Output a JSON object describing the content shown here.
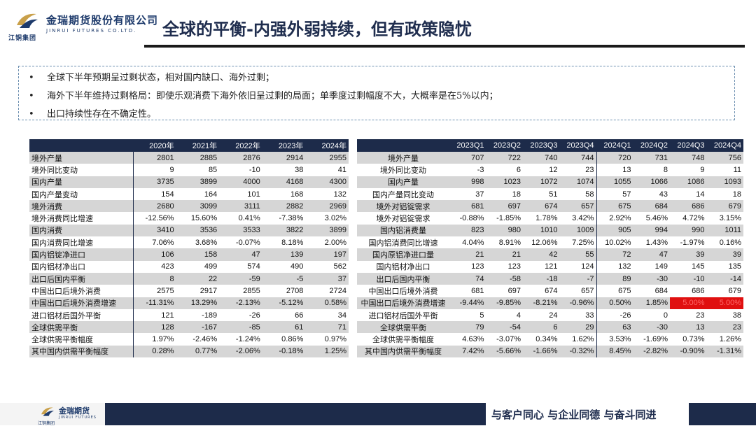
{
  "header": {
    "company_cn": "金瑞期货股份有限公司",
    "company_en": "JINRUI FUTURES CO.LTD.",
    "group": "江铜集团",
    "title": "全球的平衡-内强外弱持续，但有政策隐忧"
  },
  "bullets": [
    "全球下半年预期呈过剩状态，相对国内缺口、海外过剩；",
    "海外下半年维持过剩格局：即使乐观消费下海外依旧呈过剩的局面；单季度过剩幅度不大，大概率是在5%以内；",
    "出口持续性存在不确定性。"
  ],
  "annual_table": {
    "headers": [
      "",
      "2020年",
      "2021年",
      "2022年",
      "2023年",
      "2024年"
    ],
    "rows": [
      [
        "境外产量",
        "2801",
        "2885",
        "2876",
        "2914",
        "2955"
      ],
      [
        "境外同比变动",
        "9",
        "85",
        "-10",
        "38",
        "41"
      ],
      [
        "国内产量",
        "3735",
        "3899",
        "4000",
        "4168",
        "4300"
      ],
      [
        "国内产量变动",
        "154",
        "164",
        "101",
        "168",
        "132"
      ],
      [
        "境外消费",
        "2680",
        "3099",
        "3111",
        "2882",
        "2969"
      ],
      [
        "境外消费同比增速",
        "-12.56%",
        "15.60%",
        "0.41%",
        "-7.38%",
        "3.02%"
      ],
      [
        "国内消费",
        "3410",
        "3536",
        "3533",
        "3822",
        "3899"
      ],
      [
        "国内消费同比增速",
        "7.06%",
        "3.68%",
        "-0.07%",
        "8.18%",
        "2.00%"
      ],
      [
        "国内铝锭净进口",
        "106",
        "158",
        "47",
        "139",
        "197"
      ],
      [
        "国内铝材净出口",
        "423",
        "499",
        "574",
        "490",
        "562"
      ],
      [
        "出口后国内平衡",
        "8",
        "22",
        "-59",
        "-5",
        "37"
      ],
      [
        "中国出口后境外消费",
        "2575",
        "2917",
        "2855",
        "2708",
        "2724"
      ],
      [
        "中国出口后境外消费增速",
        "-11.31%",
        "13.29%",
        "-2.13%",
        "-5.12%",
        "0.58%"
      ],
      [
        "进口铝材后国外平衡",
        "121",
        "-189",
        "-26",
        "66",
        "34"
      ],
      [
        "全球供需平衡",
        "128",
        "-167",
        "-85",
        "61",
        "71"
      ],
      [
        "全球供需平衡幅度",
        "1.97%",
        "-2.46%",
        "-1.24%",
        "0.86%",
        "0.97%"
      ],
      [
        "其中国内供需平衡幅度",
        "0.28%",
        "0.77%",
        "-2.06%",
        "-0.18%",
        "1.25%"
      ]
    ]
  },
  "quarterly_table": {
    "headers": [
      "",
      "2023Q1",
      "2023Q2",
      "2023Q3",
      "2023Q4",
      "2024Q1",
      "2024Q2",
      "2024Q3",
      "2024Q4"
    ],
    "rows": [
      [
        "境外产量",
        "707",
        "722",
        "740",
        "744",
        "720",
        "731",
        "748",
        "756"
      ],
      [
        "境外同比变动",
        "-3",
        "6",
        "12",
        "23",
        "13",
        "8",
        "9",
        "11"
      ],
      [
        "国内产量",
        "998",
        "1023",
        "1072",
        "1074",
        "1055",
        "1066",
        "1086",
        "1093"
      ],
      [
        "国内产量同比变动",
        "37",
        "18",
        "51",
        "58",
        "57",
        "43",
        "14",
        "18"
      ],
      [
        "境外对铝锭需求",
        "681",
        "697",
        "674",
        "657",
        "675",
        "684",
        "686",
        "679"
      ],
      [
        "境外对铝锭需求",
        "-0.88%",
        "-1.85%",
        "1.78%",
        "3.42%",
        "2.92%",
        "5.46%",
        "4.72%",
        "3.15%"
      ],
      [
        "国内铝消费量",
        "823",
        "980",
        "1010",
        "1009",
        "905",
        "994",
        "990",
        "1011"
      ],
      [
        "国内铝消费同比增速",
        "4.04%",
        "8.91%",
        "12.06%",
        "7.25%",
        "10.02%",
        "1.43%",
        "-1.97%",
        "0.16%"
      ],
      [
        "国内原铝净进口量",
        "21",
        "21",
        "42",
        "55",
        "72",
        "47",
        "39",
        "39"
      ],
      [
        "国内铝材净出口",
        "123",
        "123",
        "121",
        "124",
        "132",
        "149",
        "145",
        "135"
      ],
      [
        "出口后国内平衡",
        "74",
        "-58",
        "-18",
        "-7",
        "89",
        "-30",
        "-10",
        "-14"
      ],
      [
        "中国出口后境外消费",
        "681",
        "697",
        "674",
        "657",
        "675",
        "684",
        "686",
        "679"
      ],
      [
        "中国出口后境外消费增速",
        "-9.44%",
        "-9.85%",
        "-8.21%",
        "-0.96%",
        "0.50%",
        "1.85%",
        "5.00%",
        "5.00%"
      ],
      [
        "进口铝材后国外平衡",
        "5",
        "4",
        "24",
        "33",
        "-26",
        "0",
        "23",
        "38"
      ],
      [
        "全球供需平衡",
        "79",
        "-54",
        "6",
        "29",
        "63",
        "-30",
        "13",
        "23"
      ],
      [
        "全球供需平衡幅度",
        "4.63%",
        "-3.07%",
        "0.34%",
        "1.62%",
        "3.53%",
        "-1.69%",
        "0.73%",
        "1.26%"
      ],
      [
        "其中国内供需平衡幅度",
        "7.42%",
        "-5.66%",
        "-1.66%",
        "-0.32%",
        "8.45%",
        "-2.82%",
        "-0.90%",
        "-1.31%"
      ]
    ],
    "highlight_color": "#e01010"
  },
  "footer": {
    "logo_cn": "金瑞期货",
    "logo_en": "JINRUI FUTURES",
    "group": "江铜集团",
    "slogan": "与客户同心 与企业同德 与奋斗同进"
  },
  "colors": {
    "header_bg": "#1d2b4a",
    "stripe": "#d6d6d6",
    "title": "#1f2d4e"
  }
}
